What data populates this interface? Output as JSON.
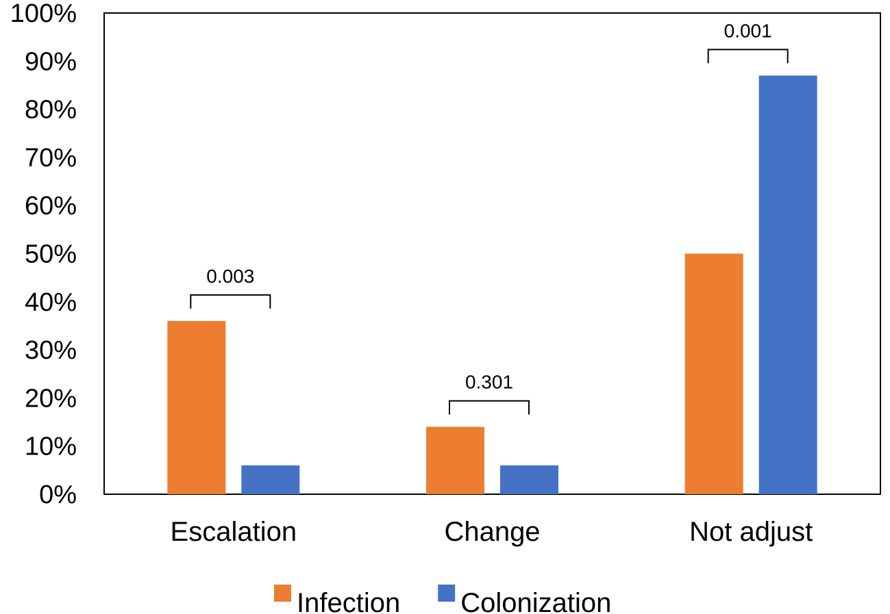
{
  "chart_data": {
    "type": "bar",
    "title": "",
    "xlabel": "",
    "ylabel": "",
    "ylim": [
      0,
      100
    ],
    "ytick_step": 10,
    "ytick_suffix": "%",
    "grid": false,
    "legend_position": "bottom-center",
    "categories": [
      "Escalation",
      "Change",
      "Not adjust"
    ],
    "series": [
      {
        "name": "Infection",
        "color": "#ED7D31",
        "values": [
          36,
          14,
          50
        ]
      },
      {
        "name": "Colonization",
        "color": "#4472C4",
        "values": [
          6,
          6,
          87
        ]
      }
    ],
    "annotations": [
      {
        "category": "Escalation",
        "label": "0.003"
      },
      {
        "category": "Change",
        "label": "0.301"
      },
      {
        "category": "Not adjust",
        "label": "0.001"
      }
    ]
  }
}
